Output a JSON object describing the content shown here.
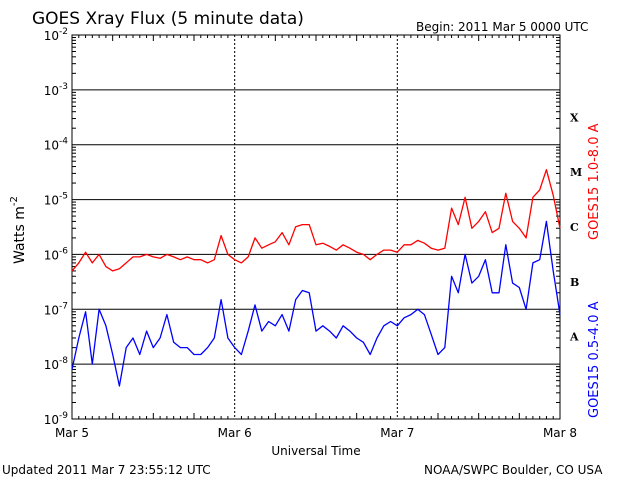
{
  "header": {
    "title": "GOES Xray Flux (5 minute data)",
    "begin": "Begin:  2011 Mar 5 0000 UTC"
  },
  "footer": {
    "updated": "Updated 2011 Mar  7 23:55:12 UTC",
    "credit": "NOAA/SWPC Boulder, CO USA"
  },
  "colors": {
    "long_channel": "#ff0000",
    "short_channel": "#0000ff"
  },
  "chart_data": {
    "type": "line",
    "xlabel": "Universal Time",
    "ylabel": "Watts m",
    "ylabel_exponent": "-2",
    "y_scale": "log",
    "ylim": [
      1e-09,
      0.01
    ],
    "y_ticks": [
      {
        "base": "10",
        "exp": "-9",
        "value": 1e-09
      },
      {
        "base": "10",
        "exp": "-8",
        "value": 1e-08
      },
      {
        "base": "10",
        "exp": "-7",
        "value": 1e-07
      },
      {
        "base": "10",
        "exp": "-6",
        "value": 1e-06
      },
      {
        "base": "10",
        "exp": "-5",
        "value": 1e-05
      },
      {
        "base": "10",
        "exp": "-4",
        "value": 0.0001
      },
      {
        "base": "10",
        "exp": "-3",
        "value": 0.001
      },
      {
        "base": "10",
        "exp": "-2",
        "value": 0.01
      }
    ],
    "x_ticks": [
      "Mar 5",
      "Mar 6",
      "Mar 7",
      "Mar 8"
    ],
    "x_unit": "hours since 2011 Mar 5 0000 UTC",
    "xlim": [
      0,
      72
    ],
    "flare_classes": [
      {
        "label": "A",
        "value": 3.16e-08
      },
      {
        "label": "B",
        "value": 3.16e-07
      },
      {
        "label": "C",
        "value": 3.16e-06
      },
      {
        "label": "M",
        "value": 3.16e-05
      },
      {
        "label": "X",
        "value": 0.000316
      }
    ],
    "series": [
      {
        "name": "GOES15 1.0-8.0 A",
        "x": [
          0,
          1,
          2,
          3,
          4,
          5,
          6,
          7,
          8,
          9,
          10,
          11,
          12,
          13,
          14,
          15,
          16,
          17,
          18,
          19,
          20,
          21,
          22,
          23,
          24,
          25,
          26,
          27,
          28,
          29,
          30,
          31,
          32,
          33,
          34,
          35,
          36,
          37,
          38,
          39,
          40,
          41,
          42,
          43,
          44,
          45,
          46,
          47,
          48,
          49,
          50,
          51,
          52,
          53,
          54,
          55,
          56,
          57,
          58,
          59,
          60,
          61,
          62,
          63,
          64,
          65,
          66,
          67,
          68,
          69,
          70,
          71,
          72
        ],
        "values": [
          5e-07,
          7e-07,
          1.1e-06,
          7e-07,
          1e-06,
          6e-07,
          5e-07,
          5.5e-07,
          7e-07,
          9e-07,
          9e-07,
          1e-06,
          9e-07,
          8.5e-07,
          1e-06,
          9e-07,
          8e-07,
          9e-07,
          8e-07,
          8e-07,
          7e-07,
          8e-07,
          2.2e-06,
          1e-06,
          8e-07,
          7e-07,
          9e-07,
          2e-06,
          1.3e-06,
          1.5e-06,
          1.7e-06,
          2.5e-06,
          1.5e-06,
          3.2e-06,
          3.5e-06,
          3.5e-06,
          1.5e-06,
          1.6e-06,
          1.4e-06,
          1.2e-06,
          1.5e-06,
          1.3e-06,
          1.1e-06,
          1e-06,
          8e-07,
          1e-06,
          1.2e-06,
          1.2e-06,
          1.1e-06,
          1.5e-06,
          1.5e-06,
          1.8e-06,
          1.6e-06,
          1.3e-06,
          1.2e-06,
          1.3e-06,
          7e-06,
          3.5e-06,
          1.1e-05,
          3e-06,
          4e-06,
          6e-06,
          2.5e-06,
          3e-06,
          1.3e-05,
          4e-06,
          3e-06,
          2e-06,
          1.1e-05,
          1.5e-05,
          3.5e-05,
          1.2e-05,
          3e-06
        ]
      },
      {
        "name": "GOES15 0.5-4.0 A",
        "x": [
          0,
          1,
          2,
          3,
          4,
          5,
          6,
          7,
          8,
          9,
          10,
          11,
          12,
          13,
          14,
          15,
          16,
          17,
          18,
          19,
          20,
          21,
          22,
          23,
          24,
          25,
          26,
          27,
          28,
          29,
          30,
          31,
          32,
          33,
          34,
          35,
          36,
          37,
          38,
          39,
          40,
          41,
          42,
          43,
          44,
          45,
          46,
          47,
          48,
          49,
          50,
          51,
          52,
          53,
          54,
          55,
          56,
          57,
          58,
          59,
          60,
          61,
          62,
          63,
          64,
          65,
          66,
          67,
          68,
          69,
          70,
          71,
          72
        ],
        "values": [
          8e-09,
          3e-08,
          9e-08,
          1e-08,
          1e-07,
          5e-08,
          1.5e-08,
          4e-09,
          2e-08,
          3e-08,
          1.5e-08,
          4e-08,
          2e-08,
          3e-08,
          8e-08,
          2.5e-08,
          2e-08,
          2e-08,
          1.5e-08,
          1.5e-08,
          2e-08,
          3e-08,
          1.5e-07,
          3e-08,
          2e-08,
          1.5e-08,
          4e-08,
          1.2e-07,
          4e-08,
          6e-08,
          5e-08,
          8e-08,
          4e-08,
          1.5e-07,
          2.2e-07,
          2e-07,
          4e-08,
          5e-08,
          4e-08,
          3e-08,
          5e-08,
          4e-08,
          3e-08,
          2.5e-08,
          1.5e-08,
          3e-08,
          5e-08,
          6e-08,
          5e-08,
          7e-08,
          8e-08,
          1e-07,
          8e-08,
          3.5e-08,
          1.5e-08,
          2e-08,
          4e-07,
          2e-07,
          1e-06,
          3e-07,
          4e-07,
          8e-07,
          2e-07,
          2e-07,
          1.5e-06,
          3e-07,
          2.5e-07,
          1e-07,
          7e-07,
          8e-07,
          4e-06,
          5e-07,
          8e-08
        ]
      }
    ]
  }
}
